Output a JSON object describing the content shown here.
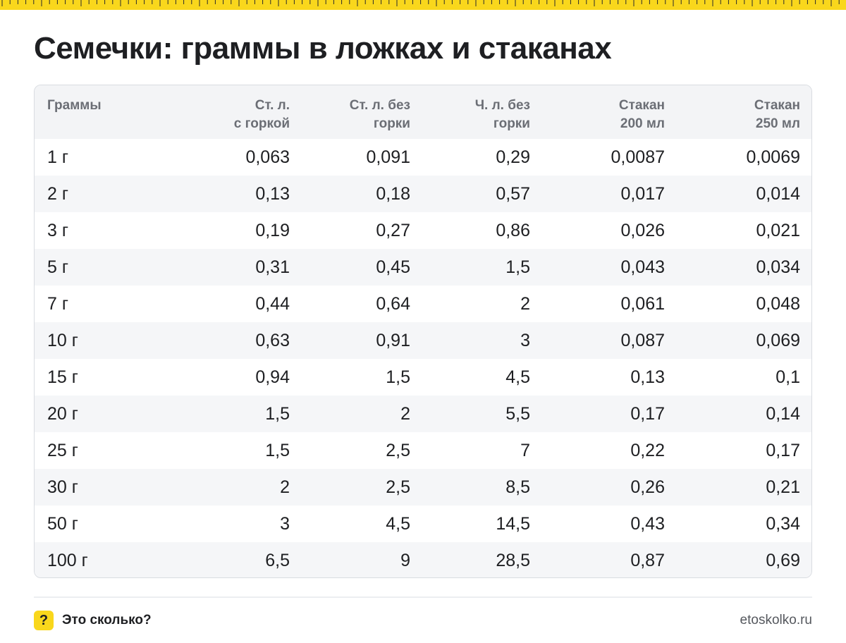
{
  "page": {
    "title": "Семечки: граммы в ложках и стаканах"
  },
  "colors": {
    "accent": "#f9d71c",
    "header_bg": "#f3f4f6",
    "row_alt_bg": "#f5f6f8",
    "text": "#1e1f22",
    "muted_text": "#6b6e75"
  },
  "table": {
    "headers": [
      [
        "Граммы",
        ""
      ],
      [
        "Ст. л.",
        "с горкой"
      ],
      [
        "Ст. л. без",
        "горки"
      ],
      [
        "Ч. л. без",
        "горки"
      ],
      [
        "Стакан",
        "200 мл"
      ],
      [
        "Стакан",
        "250 мл"
      ]
    ],
    "rows": [
      [
        "1 г",
        "0,063",
        "0,091",
        "0,29",
        "0,0087",
        "0,0069"
      ],
      [
        "2 г",
        "0,13",
        "0,18",
        "0,57",
        "0,017",
        "0,014"
      ],
      [
        "3 г",
        "0,19",
        "0,27",
        "0,86",
        "0,026",
        "0,021"
      ],
      [
        "5 г",
        "0,31",
        "0,45",
        "1,5",
        "0,043",
        "0,034"
      ],
      [
        "7 г",
        "0,44",
        "0,64",
        "2",
        "0,061",
        "0,048"
      ],
      [
        "10 г",
        "0,63",
        "0,91",
        "3",
        "0,087",
        "0,069"
      ],
      [
        "15 г",
        "0,94",
        "1,5",
        "4,5",
        "0,13",
        "0,1"
      ],
      [
        "20 г",
        "1,5",
        "2",
        "5,5",
        "0,17",
        "0,14"
      ],
      [
        "25 г",
        "1,5",
        "2,5",
        "7",
        "0,22",
        "0,17"
      ],
      [
        "30 г",
        "2",
        "2,5",
        "8,5",
        "0,26",
        "0,21"
      ],
      [
        "50 г",
        "3",
        "4,5",
        "14,5",
        "0,43",
        "0,34"
      ],
      [
        "100 г",
        "6,5",
        "9",
        "28,5",
        "0,87",
        "0,69"
      ]
    ]
  },
  "footer": {
    "icon_glyph": "?",
    "icon_name": "question-mark-icon",
    "brand": "Это сколько?",
    "site": "etoskolko.ru"
  }
}
